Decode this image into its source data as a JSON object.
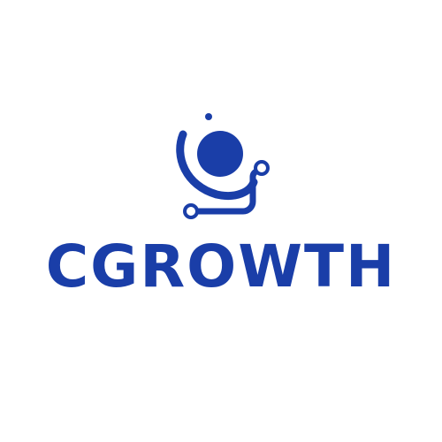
{
  "logo": {
    "wordmark": "CGROWTH",
    "brand_color": "#1a3ea8",
    "mark_icon": "growth-circuit-icon"
  }
}
